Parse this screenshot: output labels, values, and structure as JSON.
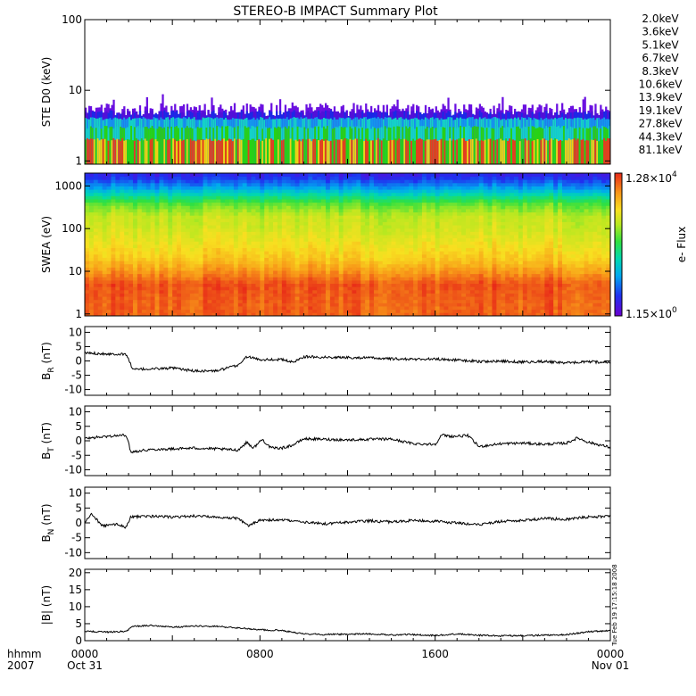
{
  "title": "STEREO-B IMPACT Summary Plot",
  "stamp": "Tue Feb 19 17:15:18 2008",
  "time_axis": {
    "row1_label": "hhmm",
    "row2_label": "2007",
    "ticks": [
      {
        "t": 0,
        "label": "0000",
        "sub": "Oct 31"
      },
      {
        "t": 8,
        "label": "0800",
        "sub": ""
      },
      {
        "t": 16,
        "label": "1600",
        "sub": ""
      },
      {
        "t": 24,
        "label": "0000",
        "sub": "Nov 01"
      }
    ],
    "range_hours": [
      0,
      24
    ]
  },
  "colorbar": {
    "label": "e- Flux",
    "max_mant": "1.28×10",
    "max_exp": "4",
    "min_mant": "1.15×10",
    "min_exp": "0"
  },
  "ste_legend": [
    {
      "label": "2.0keV",
      "color": "#9b1ec8"
    },
    {
      "label": "3.6keV",
      "color": "#5010d8"
    },
    {
      "label": "5.1keV",
      "color": "#1a28e6"
    },
    {
      "label": "6.7keV",
      "color": "#1496ee"
    },
    {
      "label": "8.3keV",
      "color": "#14d2c8"
    },
    {
      "label": "10.6keV",
      "color": "#14c864"
    },
    {
      "label": "13.9keV",
      "color": "#28d214"
    },
    {
      "label": "19.1keV",
      "color": "#a0dc14"
    },
    {
      "label": "27.8keV",
      "color": "#f0d214"
    },
    {
      "label": "44.3keV",
      "color": "#f09614"
    },
    {
      "label": "81.1keV",
      "color": "#e63c1e"
    }
  ],
  "chart_data": [
    {
      "type": "line",
      "name": "ste",
      "ylabel": "STE D0 (keV)",
      "yscale": "log",
      "ylim": [
        0.9,
        100
      ],
      "yticks": [
        {
          "v": 1,
          "label": "1"
        },
        {
          "v": 10,
          "label": "10"
        },
        {
          "v": 100,
          "label": "100"
        }
      ],
      "band_levels_keV": [
        2.0,
        3.0,
        4.0,
        5.0
      ],
      "typical_top_keV": 6.0,
      "spike_max_keV": 9.0
    },
    {
      "type": "heatmap",
      "name": "swea",
      "ylabel": "SWEA (eV)",
      "yscale": "log",
      "ylim": [
        0.9,
        2000
      ],
      "yticks": [
        {
          "v": 1,
          "label": "1"
        },
        {
          "v": 10,
          "label": "10"
        },
        {
          "v": 100,
          "label": "100"
        },
        {
          "v": 1000,
          "label": "1000"
        }
      ],
      "energy_ev": [
        1,
        2,
        5,
        10,
        20,
        50,
        100,
        200,
        400,
        600,
        900,
        1500,
        2000
      ],
      "flux_level": [
        0.93,
        0.93,
        0.95,
        0.86,
        0.78,
        0.72,
        0.68,
        0.66,
        0.55,
        0.42,
        0.28,
        0.15,
        0.1
      ]
    },
    {
      "type": "line",
      "name": "br",
      "ylabel_main": "B",
      "ylabel_sub": "R",
      "ylabel_tail": " (nT)",
      "ylim": [
        -12,
        12
      ],
      "yticks": [
        {
          "v": -10,
          "label": "-10"
        },
        {
          "v": -5,
          "label": "-5"
        },
        {
          "v": 0,
          "label": "0"
        },
        {
          "v": 5,
          "label": "5"
        },
        {
          "v": 10,
          "label": "10"
        }
      ],
      "x": [
        0,
        1.0,
        1.9,
        2.2,
        3.0,
        4.0,
        5.0,
        6.0,
        7.0,
        7.4,
        8.0,
        9.0,
        9.5,
        10.0,
        11.0,
        12.0,
        13.0,
        14.0,
        15.0,
        16.0,
        17.0,
        18.0,
        19.0,
        20.0,
        21.0,
        22.0,
        23.0,
        24.0
      ],
      "y": [
        2.8,
        2.5,
        2.3,
        -3.0,
        -2.8,
        -2.5,
        -3.5,
        -3.5,
        -1.5,
        1.5,
        0.5,
        0.5,
        -0.5,
        1.5,
        1.3,
        1.2,
        1.1,
        0.7,
        0.6,
        0.7,
        0.3,
        -0.2,
        -0.1,
        -0.4,
        -0.2,
        -0.7,
        -0.3,
        -0.5
      ]
    },
    {
      "type": "line",
      "name": "bt",
      "ylabel_main": "B",
      "ylabel_sub": "T",
      "ylabel_tail": " (nT)",
      "ylim": [
        -12,
        12
      ],
      "yticks": [
        {
          "v": -10,
          "label": "-10"
        },
        {
          "v": -5,
          "label": "-5"
        },
        {
          "v": 0,
          "label": "0"
        },
        {
          "v": 5,
          "label": "5"
        },
        {
          "v": 10,
          "label": "10"
        }
      ],
      "x": [
        0,
        1.0,
        1.9,
        2.1,
        3.0,
        4.0,
        5.0,
        6.0,
        7.0,
        7.4,
        7.7,
        8.1,
        8.5,
        9.0,
        9.5,
        10.0,
        11.0,
        12.0,
        13.0,
        14.0,
        15.0,
        16.0,
        16.3,
        16.8,
        17.5,
        18.0,
        19.0,
        20.0,
        21.0,
        22.0,
        22.5,
        23.0,
        24.0
      ],
      "y": [
        0.8,
        1.5,
        2.0,
        -3.8,
        -3.0,
        -2.8,
        -2.5,
        -2.8,
        -3.2,
        -0.5,
        -2.5,
        0.5,
        -2.5,
        -2.5,
        -1.5,
        0.7,
        0.5,
        0.3,
        0.5,
        0.6,
        -1.0,
        -1.2,
        2.0,
        1.5,
        1.8,
        -2.0,
        -1.0,
        -0.8,
        -1.2,
        -0.8,
        1.0,
        -0.5,
        -2.3
      ]
    },
    {
      "type": "line",
      "name": "bn",
      "ylabel_main": "B",
      "ylabel_sub": "N",
      "ylabel_tail": " (nT)",
      "ylim": [
        -12,
        12
      ],
      "yticks": [
        {
          "v": -10,
          "label": "-10"
        },
        {
          "v": -5,
          "label": "-5"
        },
        {
          "v": 0,
          "label": "0"
        },
        {
          "v": 5,
          "label": "5"
        },
        {
          "v": 10,
          "label": "10"
        }
      ],
      "x": [
        0,
        0.3,
        0.8,
        1.5,
        1.9,
        2.1,
        3.0,
        4.0,
        5.0,
        6.0,
        7.0,
        7.5,
        8.0,
        9.0,
        10.0,
        11.0,
        12.0,
        13.0,
        14.0,
        15.0,
        16.0,
        17.0,
        18.0,
        19.0,
        20.0,
        21.0,
        22.0,
        23.0,
        24.0
      ],
      "y": [
        0.0,
        3.0,
        -1.0,
        -0.5,
        -1.5,
        2.0,
        2.2,
        2.0,
        2.3,
        2.0,
        1.5,
        -1.0,
        1.0,
        1.0,
        0.2,
        -0.3,
        0.2,
        0.7,
        0.3,
        0.8,
        0.5,
        0.0,
        -0.5,
        0.5,
        0.8,
        1.5,
        1.2,
        2.0,
        2.2
      ]
    },
    {
      "type": "line",
      "name": "bmag",
      "ylabel_main": "|B|",
      "ylabel_sub": "",
      "ylabel_tail": " (nT)",
      "ylim": [
        0,
        21
      ],
      "yticks": [
        {
          "v": 0,
          "label": "0"
        },
        {
          "v": 5,
          "label": "5"
        },
        {
          "v": 10,
          "label": "10"
        },
        {
          "v": 15,
          "label": "15"
        },
        {
          "v": 20,
          "label": "20"
        }
      ],
      "x": [
        0,
        1.0,
        1.9,
        2.2,
        3.0,
        4.0,
        5.0,
        6.0,
        7.0,
        8.0,
        9.0,
        10.0,
        11.0,
        12.0,
        13.0,
        14.0,
        15.0,
        16.0,
        17.0,
        18.0,
        19.0,
        20.0,
        21.0,
        22.0,
        23.0,
        24.0
      ],
      "y": [
        2.8,
        2.5,
        2.8,
        4.2,
        4.5,
        4.0,
        4.3,
        4.2,
        3.8,
        3.2,
        3.0,
        2.0,
        1.8,
        1.9,
        2.0,
        1.7,
        1.8,
        1.5,
        2.0,
        1.6,
        1.4,
        1.5,
        1.6,
        1.8,
        2.6,
        3.0
      ]
    }
  ]
}
